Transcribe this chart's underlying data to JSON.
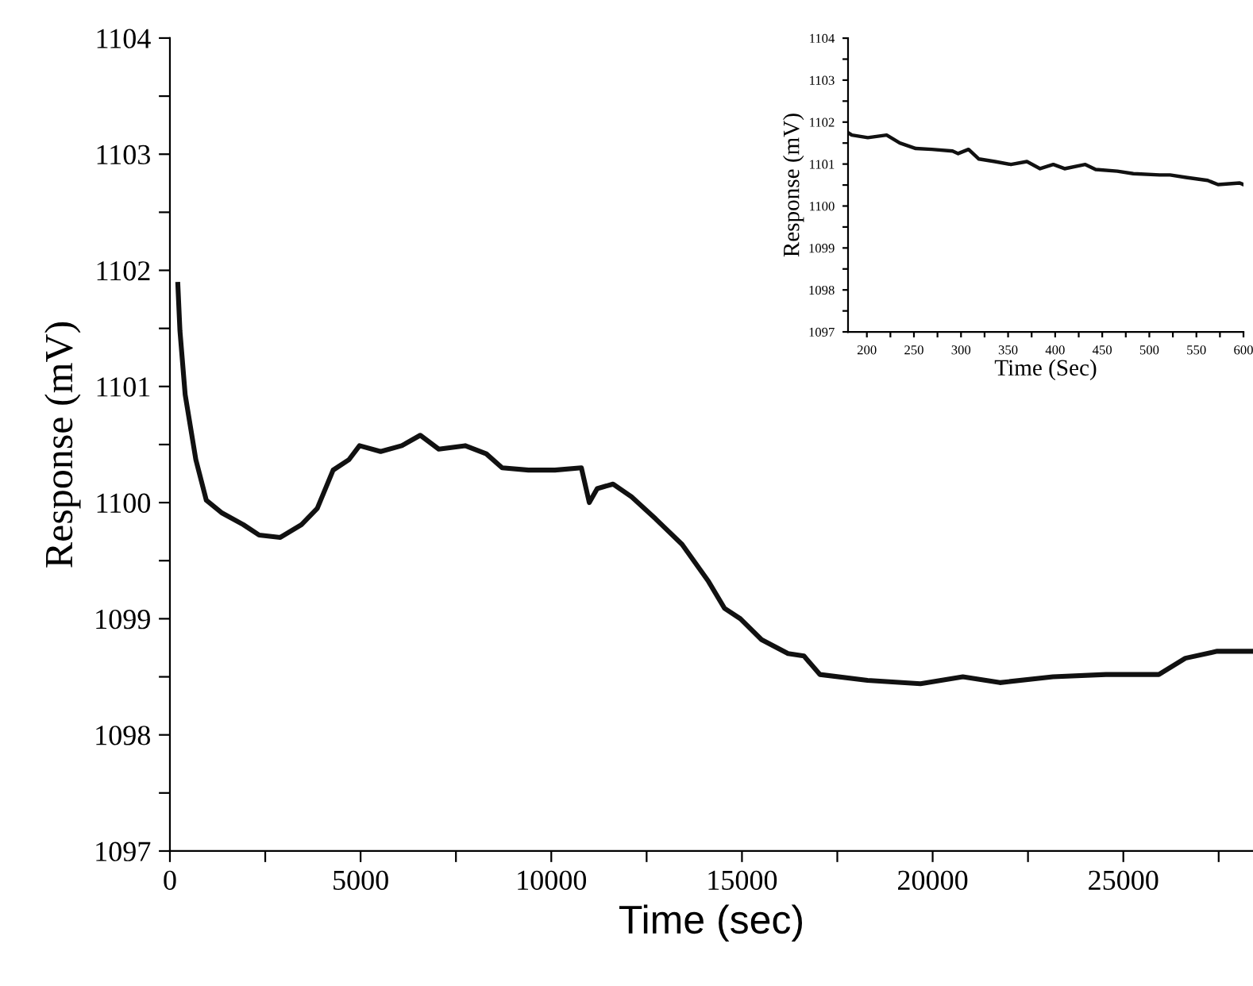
{
  "chart_data": [
    {
      "type": "line",
      "xlabel": "Time (sec)",
      "ylabel": "Response (mV)",
      "xlim": [
        0,
        28400
      ],
      "ylim": [
        1097,
        1104
      ],
      "xticks": [
        0,
        {
          "value": 2500,
          "label": null
        },
        5000,
        {
          "value": 7500,
          "label": null
        },
        10000,
        {
          "value": 12500,
          "label": null
        },
        15000,
        {
          "value": 17500,
          "label": null
        },
        20000,
        {
          "value": 22500,
          "label": null
        },
        25000,
        {
          "value": 27500,
          "label": null
        }
      ],
      "yticks": [
        1097,
        {
          "value": 1097.5,
          "label": null
        },
        1098,
        {
          "value": 1098.5,
          "label": null
        },
        1099,
        {
          "value": 1099.5,
          "label": null
        },
        1100,
        {
          "value": 1100.5,
          "label": null
        },
        1101,
        {
          "value": 1101.5,
          "label": null
        },
        1102,
        {
          "value": 1102.5,
          "label": null
        },
        1103,
        {
          "value": 1103.5,
          "label": null
        },
        1104
      ],
      "grid": false,
      "legend": false,
      "marker": "none",
      "line_style": "solid",
      "series": [
        {
          "color": "#111111",
          "x": [
            208,
            263,
            400,
            680,
            955,
            1370,
            1925,
            2340,
            2895,
            3450,
            3864,
            4280,
            4695,
            4972,
            5526,
            6080,
            6565,
            7050,
            7742,
            8296,
            8711,
            9404,
            10096,
            10789,
            10997,
            11204,
            11620,
            12104,
            12736,
            13430,
            14125,
            14542,
            14958,
            15514,
            16208,
            16625,
            17042,
            18292,
            19681,
            20792,
            21764,
            23153,
            24542,
            25931,
            26626,
            27459,
            28380
          ],
          "values": [
            1101.88,
            1101.48,
            1100.93,
            1100.37,
            1100.02,
            1099.91,
            1099.81,
            1099.72,
            1099.7,
            1099.81,
            1099.95,
            1100.28,
            1100.37,
            1100.49,
            1100.44,
            1100.49,
            1100.58,
            1100.46,
            1100.49,
            1100.42,
            1100.3,
            1100.28,
            1100.28,
            1100.3,
            1100.0,
            1100.12,
            1100.16,
            1100.05,
            1099.86,
            1099.64,
            1099.32,
            1099.09,
            1099.0,
            1098.82,
            1098.7,
            1098.68,
            1098.52,
            1098.47,
            1098.44,
            1098.5,
            1098.45,
            1098.5,
            1098.52,
            1098.52,
            1098.66,
            1098.72,
            1098.72
          ]
        }
      ]
    },
    {
      "type": "line",
      "xlabel": "Time (Sec)",
      "ylabel": "Response (mV)",
      "xlim": [
        180,
        600
      ],
      "ylim": [
        1097,
        1104
      ],
      "xticks": [
        200,
        {
          "value": 225,
          "label": null
        },
        250,
        {
          "value": 275,
          "label": null
        },
        300,
        {
          "value": 325,
          "label": null
        },
        350,
        {
          "value": 375,
          "label": null
        },
        400,
        {
          "value": 425,
          "label": null
        },
        450,
        {
          "value": 475,
          "label": null
        },
        500,
        {
          "value": 525,
          "label": null
        },
        550,
        {
          "value": 575,
          "label": null
        },
        600
      ],
      "yticks": [
        1097,
        {
          "value": 1097.5,
          "label": null
        },
        1098,
        {
          "value": 1098.5,
          "label": null
        },
        1099,
        {
          "value": 1099.5,
          "label": null
        },
        1100,
        {
          "value": 1100.5,
          "label": null
        },
        1101,
        {
          "value": 1101.5,
          "label": null
        },
        1102,
        {
          "value": 1102.5,
          "label": null
        },
        1103,
        {
          "value": 1103.5,
          "label": null
        },
        1104
      ],
      "grid": false,
      "legend": false,
      "marker": "none",
      "line_style": "solid",
      "series": [
        {
          "color": "#111111",
          "x": [
            180,
            184,
            201,
            221,
            235,
            252,
            269,
            291,
            297,
            308,
            319,
            336,
            353,
            370,
            384,
            398,
            410,
            432,
            443,
            466,
            483,
            511,
            522,
            539,
            562,
            573,
            596,
            600
          ],
          "values": [
            1101.75,
            1101.69,
            1101.63,
            1101.69,
            1101.5,
            1101.37,
            1101.35,
            1101.31,
            1101.25,
            1101.35,
            1101.12,
            1101.06,
            1100.99,
            1101.06,
            1100.89,
            1100.99,
            1100.89,
            1100.99,
            1100.87,
            1100.83,
            1100.77,
            1100.74,
            1100.74,
            1100.68,
            1100.61,
            1100.51,
            1100.55,
            1100.51
          ]
        }
      ]
    }
  ]
}
